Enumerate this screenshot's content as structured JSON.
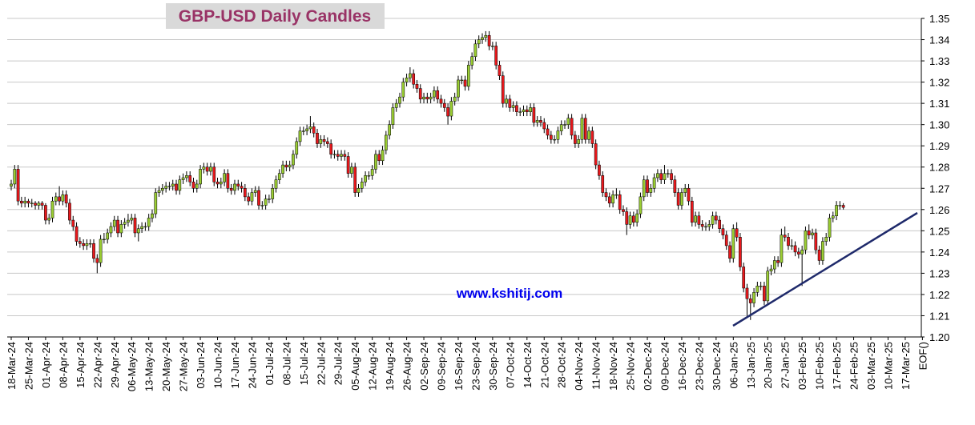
{
  "chart_data": {
    "type": "candlestick",
    "title": "GBP-USD Daily Candles",
    "watermark": "www.kshitij.com",
    "categories": [
      "18-Mar-24",
      "25-Mar-24",
      "01-Apr-24",
      "08-Apr-24",
      "15-Apr-24",
      "22-Apr-24",
      "29-Apr-24",
      "06-May-24",
      "13-May-24",
      "20-May-24",
      "27-May-24",
      "03-Jun-24",
      "10-Jun-24",
      "17-Jun-24",
      "24-Jun-24",
      "01-Jul-24",
      "08-Jul-24",
      "15-Jul-24",
      "22-Jul-24",
      "29-Jul-24",
      "05-Aug-24",
      "12-Aug-24",
      "19-Aug-24",
      "26-Aug-24",
      "02-Sep-24",
      "09-Sep-24",
      "16-Sep-24",
      "23-Sep-24",
      "30-Sep-24",
      "07-Oct-24",
      "14-Oct-24",
      "21-Oct-24",
      "28-Oct-24",
      "04-Nov-24",
      "11-Nov-24",
      "18-Nov-24",
      "25-Nov-24",
      "02-Dec-24",
      "09-Dec-24",
      "16-Dec-24",
      "23-Dec-24",
      "30-Dec-24",
      "06-Jan-25",
      "13-Jan-25",
      "20-Jan-25",
      "27-Jan-25",
      "03-Feb-25",
      "10-Feb-25",
      "17-Feb-25",
      "24-Feb-25",
      "03-Mar-25",
      "10-Mar-25",
      "17-Mar-25",
      "EOF()"
    ],
    "ylim": [
      1.2,
      1.35
    ],
    "yticks": [
      {
        "value": 1.2,
        "label": "1.20"
      },
      1.21,
      1.22,
      1.23,
      1.24,
      1.25,
      1.26,
      1.27,
      1.28,
      1.29,
      {
        "value": 1.3,
        "label": "1.30"
      },
      1.31,
      1.32,
      1.33,
      1.34,
      1.35
    ],
    "grid": true,
    "up_color": "#9acd32",
    "down_color": "#e8191d",
    "ohlc": [
      [
        1.271,
        1.274,
        1.269,
        1.272
      ],
      [
        1.272,
        1.281,
        1.27,
        1.279
      ],
      [
        1.279,
        1.281,
        1.262,
        1.264
      ],
      [
        1.264,
        1.266,
        1.261,
        1.263
      ],
      [
        1.263,
        1.266,
        1.261,
        1.264
      ],
      [
        1.264,
        1.265,
        1.261,
        1.263
      ],
      [
        1.263,
        1.265,
        1.261,
        1.263
      ],
      [
        1.263,
        1.264,
        1.26,
        1.262
      ],
      [
        1.262,
        1.264,
        1.26,
        1.263
      ],
      [
        1.263,
        1.264,
        1.26,
        1.262
      ],
      [
        1.262,
        1.263,
        1.253,
        1.255
      ],
      [
        1.255,
        1.258,
        1.253,
        1.256
      ],
      [
        1.256,
        1.266,
        1.254,
        1.264
      ],
      [
        1.264,
        1.268,
        1.262,
        1.266
      ],
      [
        1.266,
        1.271,
        1.262,
        1.264
      ],
      [
        1.264,
        1.269,
        1.262,
        1.267
      ],
      [
        1.267,
        1.269,
        1.261,
        1.263
      ],
      [
        1.263,
        1.265,
        1.253,
        1.255
      ],
      [
        1.255,
        1.257,
        1.25,
        1.252
      ],
      [
        1.252,
        1.254,
        1.243,
        1.245
      ],
      [
        1.245,
        1.247,
        1.242,
        1.244
      ],
      [
        1.244,
        1.246,
        1.241,
        1.243
      ],
      [
        1.243,
        1.246,
        1.241,
        1.244
      ],
      [
        1.244,
        1.246,
        1.242,
        1.244
      ],
      [
        1.244,
        1.246,
        1.235,
        1.237
      ],
      [
        1.237,
        1.239,
        1.23,
        1.235
      ],
      [
        1.235,
        1.248,
        1.233,
        1.246
      ],
      [
        1.246,
        1.249,
        1.244,
        1.246
      ],
      [
        1.246,
        1.251,
        1.244,
        1.249
      ],
      [
        1.249,
        1.254,
        1.247,
        1.252
      ],
      [
        1.252,
        1.257,
        1.25,
        1.255
      ],
      [
        1.255,
        1.257,
        1.247,
        1.249
      ],
      [
        1.249,
        1.255,
        1.247,
        1.253
      ],
      [
        1.253,
        1.256,
        1.251,
        1.254
      ],
      [
        1.254,
        1.258,
        1.252,
        1.255
      ],
      [
        1.255,
        1.258,
        1.253,
        1.256
      ],
      [
        1.256,
        1.258,
        1.247,
        1.249
      ],
      [
        1.249,
        1.253,
        1.245,
        1.251
      ],
      [
        1.251,
        1.254,
        1.249,
        1.252
      ],
      [
        1.252,
        1.254,
        1.25,
        1.252
      ],
      [
        1.252,
        1.258,
        1.25,
        1.256
      ],
      [
        1.256,
        1.26,
        1.254,
        1.258
      ],
      [
        1.258,
        1.27,
        1.256,
        1.268
      ],
      [
        1.268,
        1.271,
        1.266,
        1.269
      ],
      [
        1.269,
        1.272,
        1.267,
        1.27
      ],
      [
        1.27,
        1.273,
        1.268,
        1.271
      ],
      [
        1.271,
        1.273,
        1.269,
        1.271
      ],
      [
        1.271,
        1.274,
        1.269,
        1.272
      ],
      [
        1.272,
        1.274,
        1.267,
        1.269
      ],
      [
        1.269,
        1.276,
        1.267,
        1.274
      ],
      [
        1.274,
        1.277,
        1.272,
        1.275
      ],
      [
        1.275,
        1.278,
        1.273,
        1.276
      ],
      [
        1.276,
        1.278,
        1.271,
        1.273
      ],
      [
        1.273,
        1.275,
        1.268,
        1.27
      ],
      [
        1.27,
        1.274,
        1.268,
        1.272
      ],
      [
        1.272,
        1.281,
        1.27,
        1.279
      ],
      [
        1.279,
        1.282,
        1.277,
        1.28
      ],
      [
        1.28,
        1.282,
        1.276,
        1.278
      ],
      [
        1.278,
        1.282,
        1.276,
        1.28
      ],
      [
        1.28,
        1.282,
        1.271,
        1.273
      ],
      [
        1.273,
        1.275,
        1.27,
        1.272
      ],
      [
        1.272,
        1.275,
        1.27,
        1.273
      ],
      [
        1.273,
        1.279,
        1.271,
        1.277
      ],
      [
        1.277,
        1.279,
        1.268,
        1.27
      ],
      [
        1.27,
        1.272,
        1.267,
        1.269
      ],
      [
        1.269,
        1.274,
        1.267,
        1.272
      ],
      [
        1.272,
        1.274,
        1.269,
        1.271
      ],
      [
        1.271,
        1.273,
        1.268,
        1.27
      ],
      [
        1.27,
        1.272,
        1.264,
        1.266
      ],
      [
        1.266,
        1.268,
        1.262,
        1.264
      ],
      [
        1.264,
        1.27,
        1.262,
        1.268
      ],
      [
        1.268,
        1.271,
        1.266,
        1.269
      ],
      [
        1.269,
        1.271,
        1.26,
        1.262
      ],
      [
        1.262,
        1.264,
        1.26,
        1.262
      ],
      [
        1.262,
        1.267,
        1.26,
        1.265
      ],
      [
        1.265,
        1.267,
        1.263,
        1.265
      ],
      [
        1.265,
        1.272,
        1.263,
        1.27
      ],
      [
        1.27,
        1.276,
        1.268,
        1.274
      ],
      [
        1.274,
        1.279,
        1.272,
        1.277
      ],
      [
        1.277,
        1.283,
        1.275,
        1.281
      ],
      [
        1.281,
        1.283,
        1.278,
        1.28
      ],
      [
        1.28,
        1.283,
        1.278,
        1.281
      ],
      [
        1.281,
        1.288,
        1.279,
        1.286
      ],
      [
        1.286,
        1.294,
        1.284,
        1.292
      ],
      [
        1.292,
        1.299,
        1.29,
        1.297
      ],
      [
        1.297,
        1.299,
        1.295,
        1.297
      ],
      [
        1.297,
        1.3,
        1.295,
        1.298
      ],
      [
        1.298,
        1.304,
        1.296,
        1.299
      ],
      [
        1.299,
        1.301,
        1.294,
        1.296
      ],
      [
        1.296,
        1.298,
        1.289,
        1.291
      ],
      [
        1.291,
        1.295,
        1.289,
        1.293
      ],
      [
        1.293,
        1.295,
        1.29,
        1.292
      ],
      [
        1.292,
        1.294,
        1.289,
        1.291
      ],
      [
        1.291,
        1.293,
        1.284,
        1.286
      ],
      [
        1.286,
        1.288,
        1.284,
        1.286
      ],
      [
        1.286,
        1.288,
        1.283,
        1.285
      ],
      [
        1.285,
        1.288,
        1.283,
        1.286
      ],
      [
        1.286,
        1.288,
        1.283,
        1.285
      ],
      [
        1.285,
        1.287,
        1.275,
        1.277
      ],
      [
        1.277,
        1.282,
        1.275,
        1.28
      ],
      [
        1.28,
        1.282,
        1.266,
        1.268
      ],
      [
        1.268,
        1.272,
        1.266,
        1.27
      ],
      [
        1.27,
        1.275,
        1.268,
        1.273
      ],
      [
        1.273,
        1.278,
        1.271,
        1.276
      ],
      [
        1.276,
        1.278,
        1.274,
        1.276
      ],
      [
        1.276,
        1.281,
        1.274,
        1.279
      ],
      [
        1.279,
        1.288,
        1.277,
        1.286
      ],
      [
        1.286,
        1.288,
        1.281,
        1.283
      ],
      [
        1.283,
        1.29,
        1.281,
        1.288
      ],
      [
        1.288,
        1.297,
        1.286,
        1.295
      ],
      [
        1.295,
        1.302,
        1.293,
        1.3
      ],
      [
        1.3,
        1.31,
        1.298,
        1.308
      ],
      [
        1.308,
        1.312,
        1.306,
        1.31
      ],
      [
        1.31,
        1.315,
        1.308,
        1.313
      ],
      [
        1.313,
        1.322,
        1.311,
        1.32
      ],
      [
        1.32,
        1.324,
        1.318,
        1.322
      ],
      [
        1.322,
        1.327,
        1.32,
        1.324
      ],
      [
        1.324,
        1.326,
        1.317,
        1.319
      ],
      [
        1.319,
        1.321,
        1.315,
        1.317
      ],
      [
        1.317,
        1.319,
        1.31,
        1.312
      ],
      [
        1.312,
        1.315,
        1.31,
        1.313
      ],
      [
        1.313,
        1.315,
        1.31,
        1.312
      ],
      [
        1.312,
        1.315,
        1.31,
        1.313
      ],
      [
        1.313,
        1.318,
        1.311,
        1.316
      ],
      [
        1.316,
        1.318,
        1.31,
        1.312
      ],
      [
        1.312,
        1.314,
        1.308,
        1.31
      ],
      [
        1.31,
        1.312,
        1.306,
        1.308
      ],
      [
        1.308,
        1.31,
        1.3,
        1.304
      ],
      [
        1.304,
        1.313,
        1.302,
        1.311
      ],
      [
        1.311,
        1.315,
        1.309,
        1.313
      ],
      [
        1.313,
        1.323,
        1.311,
        1.321
      ],
      [
        1.321,
        1.323,
        1.319,
        1.321
      ],
      [
        1.321,
        1.323,
        1.316,
        1.318
      ],
      [
        1.318,
        1.33,
        1.316,
        1.328
      ],
      [
        1.328,
        1.334,
        1.326,
        1.332
      ],
      [
        1.332,
        1.34,
        1.33,
        1.338
      ],
      [
        1.338,
        1.342,
        1.336,
        1.34
      ],
      [
        1.34,
        1.343,
        1.338,
        1.341
      ],
      [
        1.341,
        1.344,
        1.339,
        1.342
      ],
      [
        1.342,
        1.344,
        1.335,
        1.337
      ],
      [
        1.337,
        1.339,
        1.335,
        1.337
      ],
      [
        1.337,
        1.339,
        1.326,
        1.328
      ],
      [
        1.328,
        1.33,
        1.321,
        1.323
      ],
      [
        1.323,
        1.325,
        1.308,
        1.31
      ],
      [
        1.31,
        1.314,
        1.308,
        1.312
      ],
      [
        1.312,
        1.314,
        1.306,
        1.308
      ],
      [
        1.308,
        1.311,
        1.306,
        1.309
      ],
      [
        1.309,
        1.311,
        1.304,
        1.306
      ],
      [
        1.306,
        1.308,
        1.304,
        1.306
      ],
      [
        1.306,
        1.309,
        1.304,
        1.307
      ],
      [
        1.307,
        1.309,
        1.304,
        1.306
      ],
      [
        1.306,
        1.31,
        1.304,
        1.308
      ],
      [
        1.308,
        1.31,
        1.299,
        1.301
      ],
      [
        1.301,
        1.304,
        1.299,
        1.302
      ],
      [
        1.302,
        1.304,
        1.299,
        1.301
      ],
      [
        1.301,
        1.303,
        1.296,
        1.298
      ],
      [
        1.298,
        1.3,
        1.293,
        1.295
      ],
      [
        1.295,
        1.297,
        1.291,
        1.293
      ],
      [
        1.293,
        1.295,
        1.291,
        1.293
      ],
      [
        1.293,
        1.299,
        1.291,
        1.297
      ],
      [
        1.297,
        1.302,
        1.295,
        1.3
      ],
      [
        1.3,
        1.302,
        1.298,
        1.3
      ],
      [
        1.3,
        1.305,
        1.298,
        1.303
      ],
      [
        1.303,
        1.305,
        1.293,
        1.295
      ],
      [
        1.295,
        1.297,
        1.289,
        1.291
      ],
      [
        1.291,
        1.295,
        1.289,
        1.293
      ],
      [
        1.293,
        1.305,
        1.291,
        1.303
      ],
      [
        1.303,
        1.305,
        1.291,
        1.293
      ],
      [
        1.293,
        1.299,
        1.291,
        1.297
      ],
      [
        1.297,
        1.299,
        1.289,
        1.291
      ],
      [
        1.291,
        1.293,
        1.279,
        1.281
      ],
      [
        1.281,
        1.283,
        1.274,
        1.276
      ],
      [
        1.276,
        1.278,
        1.266,
        1.268
      ],
      [
        1.268,
        1.27,
        1.264,
        1.266
      ],
      [
        1.266,
        1.268,
        1.261,
        1.263
      ],
      [
        1.263,
        1.269,
        1.261,
        1.267
      ],
      [
        1.267,
        1.27,
        1.265,
        1.267
      ],
      [
        1.267,
        1.269,
        1.258,
        1.26
      ],
      [
        1.26,
        1.262,
        1.257,
        1.259
      ],
      [
        1.259,
        1.261,
        1.248,
        1.253
      ],
      [
        1.253,
        1.259,
        1.251,
        1.257
      ],
      [
        1.257,
        1.259,
        1.252,
        1.254
      ],
      [
        1.254,
        1.26,
        1.252,
        1.258
      ],
      [
        1.258,
        1.268,
        1.256,
        1.266
      ],
      [
        1.266,
        1.276,
        1.264,
        1.274
      ],
      [
        1.274,
        1.276,
        1.266,
        1.268
      ],
      [
        1.268,
        1.272,
        1.266,
        1.27
      ],
      [
        1.27,
        1.277,
        1.268,
        1.275
      ],
      [
        1.275,
        1.279,
        1.273,
        1.277
      ],
      [
        1.277,
        1.279,
        1.272,
        1.274
      ],
      [
        1.274,
        1.281,
        1.272,
        1.277
      ],
      [
        1.277,
        1.279,
        1.275,
        1.277
      ],
      [
        1.277,
        1.279,
        1.272,
        1.274
      ],
      [
        1.274,
        1.276,
        1.266,
        1.268
      ],
      [
        1.268,
        1.27,
        1.26,
        1.262
      ],
      [
        1.262,
        1.27,
        1.26,
        1.268
      ],
      [
        1.268,
        1.272,
        1.266,
        1.27
      ],
      [
        1.27,
        1.272,
        1.262,
        1.264
      ],
      [
        1.264,
        1.266,
        1.252,
        1.254
      ],
      [
        1.254,
        1.259,
        1.252,
        1.257
      ],
      [
        1.257,
        1.259,
        1.251,
        1.253
      ],
      [
        1.253,
        1.255,
        1.25,
        1.252
      ],
      [
        1.252,
        1.254,
        1.25,
        1.252
      ],
      [
        1.252,
        1.255,
        1.25,
        1.253
      ],
      [
        1.253,
        1.259,
        1.251,
        1.257
      ],
      [
        1.257,
        1.259,
        1.253,
        1.255
      ],
      [
        1.255,
        1.257,
        1.249,
        1.251
      ],
      [
        1.251,
        1.253,
        1.246,
        1.248
      ],
      [
        1.248,
        1.25,
        1.241,
        1.243
      ],
      [
        1.243,
        1.245,
        1.235,
        1.237
      ],
      [
        1.237,
        1.253,
        1.235,
        1.251
      ],
      [
        1.251,
        1.254,
        1.245,
        1.247
      ],
      [
        1.247,
        1.249,
        1.231,
        1.233
      ],
      [
        1.233,
        1.235,
        1.221,
        1.223
      ],
      [
        1.223,
        1.225,
        1.21,
        1.218
      ],
      [
        1.218,
        1.22,
        1.208,
        1.216
      ],
      [
        1.216,
        1.223,
        1.214,
        1.221
      ],
      [
        1.221,
        1.226,
        1.219,
        1.224
      ],
      [
        1.224,
        1.226,
        1.222,
        1.224
      ],
      [
        1.224,
        1.226,
        1.215,
        1.217
      ],
      [
        1.217,
        1.233,
        1.215,
        1.231
      ],
      [
        1.231,
        1.234,
        1.229,
        1.232
      ],
      [
        1.232,
        1.238,
        1.23,
        1.236
      ],
      [
        1.236,
        1.238,
        1.233,
        1.235
      ],
      [
        1.235,
        1.251,
        1.233,
        1.248
      ],
      [
        1.248,
        1.252,
        1.245,
        1.247
      ],
      [
        1.247,
        1.249,
        1.241,
        1.243
      ],
      [
        1.243,
        1.246,
        1.241,
        1.243
      ],
      [
        1.243,
        1.245,
        1.238,
        1.24
      ],
      [
        1.24,
        1.242,
        1.237,
        1.239
      ],
      [
        1.239,
        1.243,
        1.224,
        1.241
      ],
      [
        1.241,
        1.252,
        1.239,
        1.25
      ],
      [
        1.25,
        1.253,
        1.246,
        1.248
      ],
      [
        1.248,
        1.251,
        1.246,
        1.249
      ],
      [
        1.249,
        1.251,
        1.239,
        1.241
      ],
      [
        1.241,
        1.243,
        1.234,
        1.236
      ],
      [
        1.236,
        1.247,
        1.234,
        1.245
      ],
      [
        1.245,
        1.249,
        1.243,
        1.247
      ],
      [
        1.247,
        1.258,
        1.245,
        1.256
      ],
      [
        1.256,
        1.259,
        1.254,
        1.257
      ],
      [
        1.257,
        1.264,
        1.255,
        1.262
      ],
      [
        1.262,
        1.264,
        1.26,
        1.262
      ],
      [
        1.262,
        1.263,
        1.26,
        1.261
      ]
    ]
  }
}
